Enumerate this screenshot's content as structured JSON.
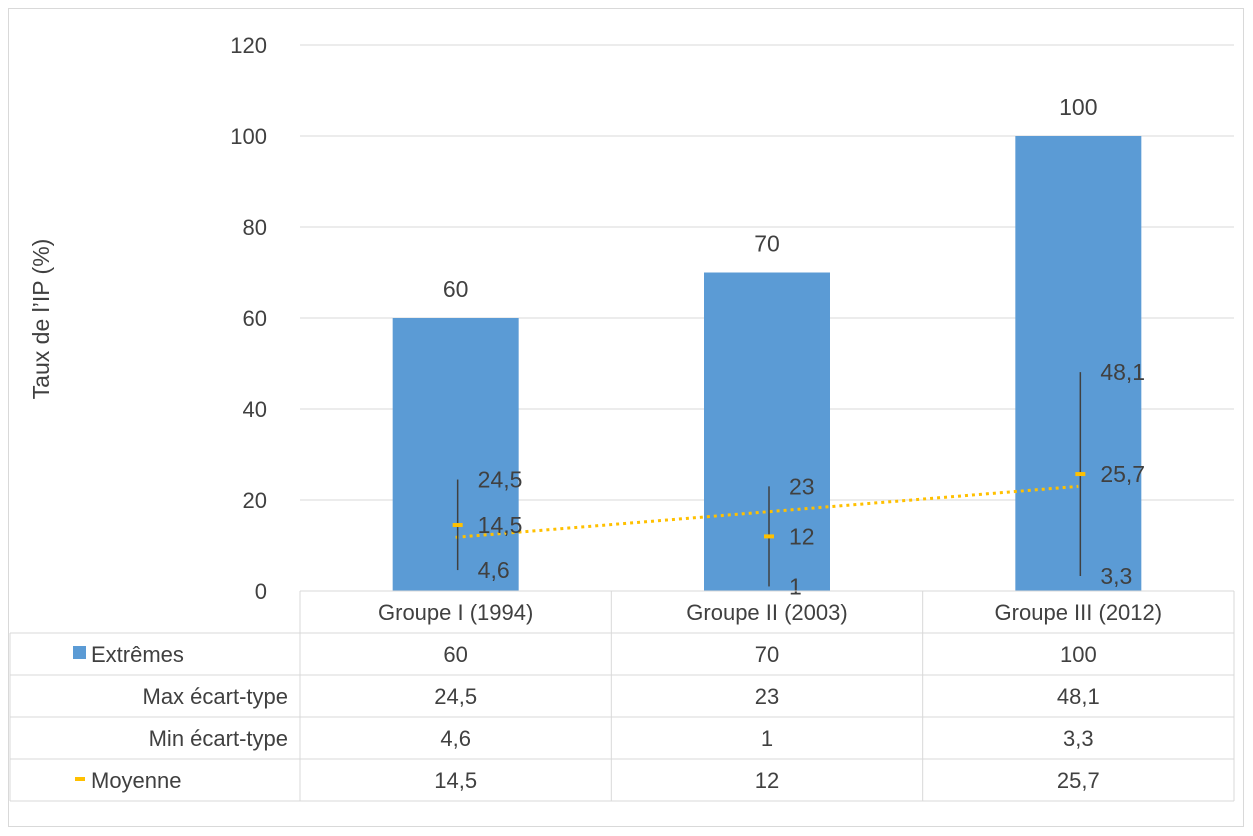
{
  "chart_data": {
    "type": "bar",
    "title": "",
    "xlabel": "",
    "ylabel": "Taux de l’IP (%)",
    "ylim": [
      0,
      120
    ],
    "yticks": [
      0,
      20,
      40,
      60,
      80,
      100,
      120
    ],
    "grid": true,
    "legend": "data-table",
    "categories": [
      "Groupe I (1994)",
      "Groupe II (2003)",
      "Groupe III (2012)"
    ],
    "series": [
      {
        "name": "Extrêmes",
        "type": "bar",
        "values": [
          60,
          70,
          100
        ],
        "color": "#5b9bd5"
      },
      {
        "name": "Max écart-type",
        "type": "high",
        "values": [
          24.5,
          23,
          48.1
        ]
      },
      {
        "name": "Min écart-type",
        "type": "low",
        "values": [
          4.6,
          1,
          3.3
        ]
      },
      {
        "name": "Moyenne",
        "type": "marker",
        "values": [
          14.5,
          12,
          25.7
        ],
        "color": "#ffc000"
      }
    ],
    "trendline": {
      "of": "Moyenne",
      "kind": "linear",
      "style": "dotted",
      "color": "#ffc000"
    },
    "colors": {
      "bar": "#5b9bd5",
      "mean": "#ffc000",
      "whisker": "#404040",
      "grid": "#d9d9d9",
      "text": "#404040"
    }
  }
}
